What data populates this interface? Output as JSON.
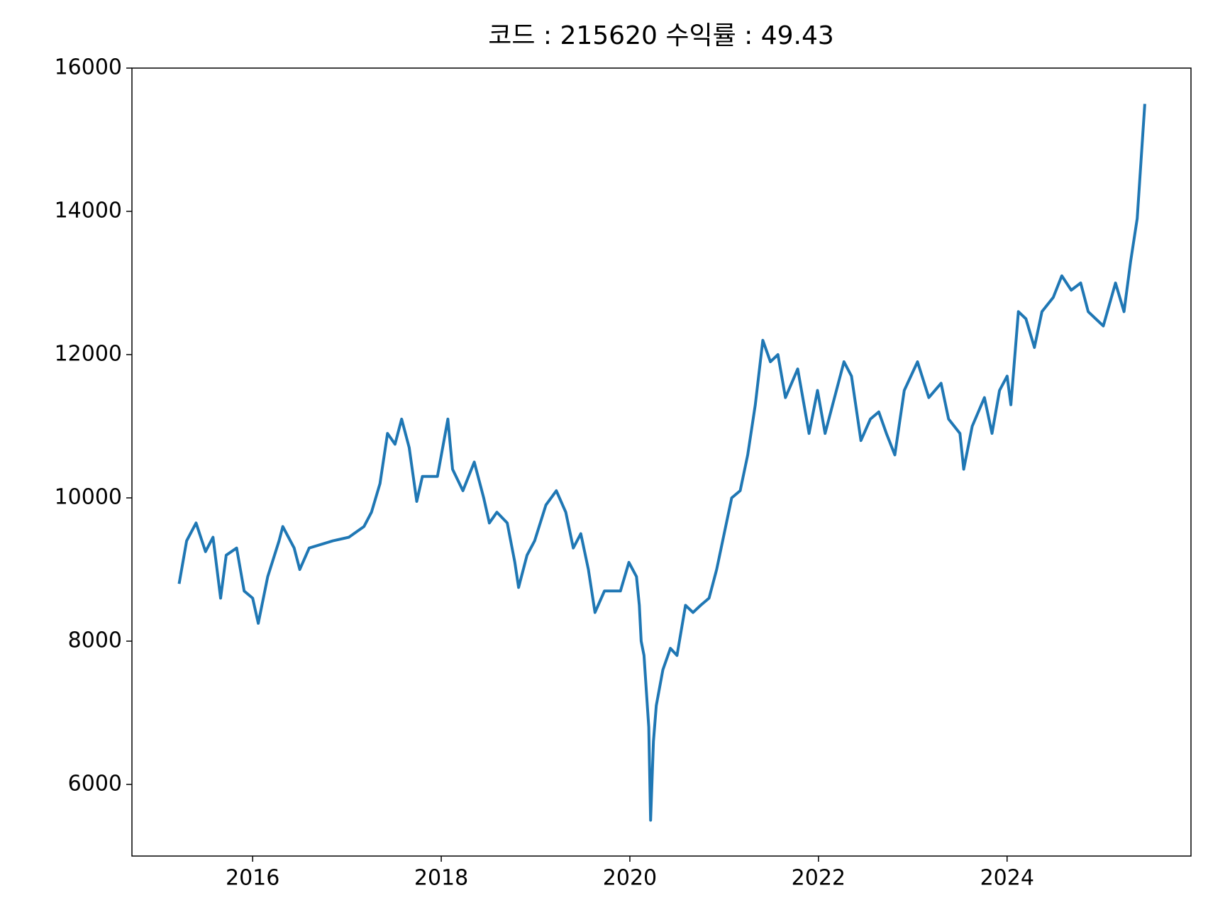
{
  "chart_data": {
    "type": "line",
    "title": "코드 : 215620 수익률 : 49.43",
    "x": [
      2015.22,
      2015.3,
      2015.4,
      2015.5,
      2015.58,
      2015.66,
      2015.72,
      2015.83,
      2015.91,
      2016.0,
      2016.06,
      2016.16,
      2016.28,
      2016.32,
      2016.44,
      2016.5,
      2016.6,
      2016.85,
      2017.02,
      2017.18,
      2017.26,
      2017.35,
      2017.43,
      2017.51,
      2017.58,
      2017.66,
      2017.74,
      2017.8,
      2017.96,
      2018.07,
      2018.12,
      2018.23,
      2018.35,
      2018.45,
      2018.51,
      2018.59,
      2018.7,
      2018.78,
      2018.82,
      2018.91,
      2018.99,
      2019.11,
      2019.22,
      2019.32,
      2019.4,
      2019.48,
      2019.56,
      2019.63,
      2019.73,
      2019.9,
      2019.99,
      2020.07,
      2020.1,
      2020.12,
      2020.15,
      2020.2,
      2020.22,
      2020.25,
      2020.28,
      2020.35,
      2020.43,
      2020.5,
      2020.59,
      2020.67,
      2020.75,
      2020.84,
      2020.92,
      2021.0,
      2021.08,
      2021.17,
      2021.25,
      2021.33,
      2021.41,
      2021.49,
      2021.57,
      2021.65,
      2021.78,
      2021.9,
      2021.99,
      2022.07,
      2022.15,
      2022.27,
      2022.35,
      2022.45,
      2022.55,
      2022.64,
      2022.72,
      2022.81,
      2022.91,
      2023.05,
      2023.17,
      2023.3,
      2023.38,
      2023.5,
      2023.54,
      2023.63,
      2023.76,
      2023.84,
      2023.92,
      2024.0,
      2024.04,
      2024.12,
      2024.2,
      2024.29,
      2024.37,
      2024.49,
      2024.58,
      2024.68,
      2024.78,
      2024.86,
      2024.94,
      2025.02,
      2025.15,
      2025.24,
      2025.31,
      2025.38,
      2025.46
    ],
    "series": [
      {
        "color": "#1f77b4",
        "values": [
          8800,
          9400,
          9650,
          9250,
          9450,
          8600,
          9200,
          9300,
          8700,
          8600,
          8250,
          8900,
          9400,
          9600,
          9300,
          9000,
          9300,
          9400,
          9450,
          9600,
          9800,
          10200,
          10900,
          10750,
          11100,
          10700,
          9950,
          10300,
          10300,
          11100,
          10400,
          10100,
          10500,
          10000,
          9650,
          9800,
          9650,
          9100,
          8750,
          9200,
          9400,
          9900,
          10100,
          9800,
          9300,
          9500,
          9000,
          8400,
          8700,
          8700,
          9100,
          8900,
          8500,
          8000,
          7800,
          6800,
          5500,
          6600,
          7100,
          7600,
          7900,
          7800,
          8500,
          8400,
          8500,
          8600,
          9000,
          9500,
          10000,
          10100,
          10600,
          11300,
          12200,
          11900,
          12000,
          11400,
          11800,
          10900,
          11500,
          10900,
          11300,
          11900,
          11700,
          10800,
          11100,
          11200,
          10900,
          10600,
          11500,
          11900,
          11400,
          11600,
          11100,
          10900,
          10400,
          11000,
          11400,
          10900,
          11500,
          11700,
          11300,
          12600,
          12500,
          12100,
          12600,
          12800,
          13100,
          12900,
          13000,
          12600,
          12500,
          12400,
          13000,
          12600,
          13300,
          13900,
          15500
        ]
      }
    ],
    "xlim": [
      2014.72,
      2025.95
    ],
    "xticks": [
      2016,
      2018,
      2020,
      2022,
      2024
    ],
    "ylim": [
      5000,
      16000
    ],
    "yticks": [
      6000,
      8000,
      10000,
      12000,
      14000,
      16000
    ]
  }
}
